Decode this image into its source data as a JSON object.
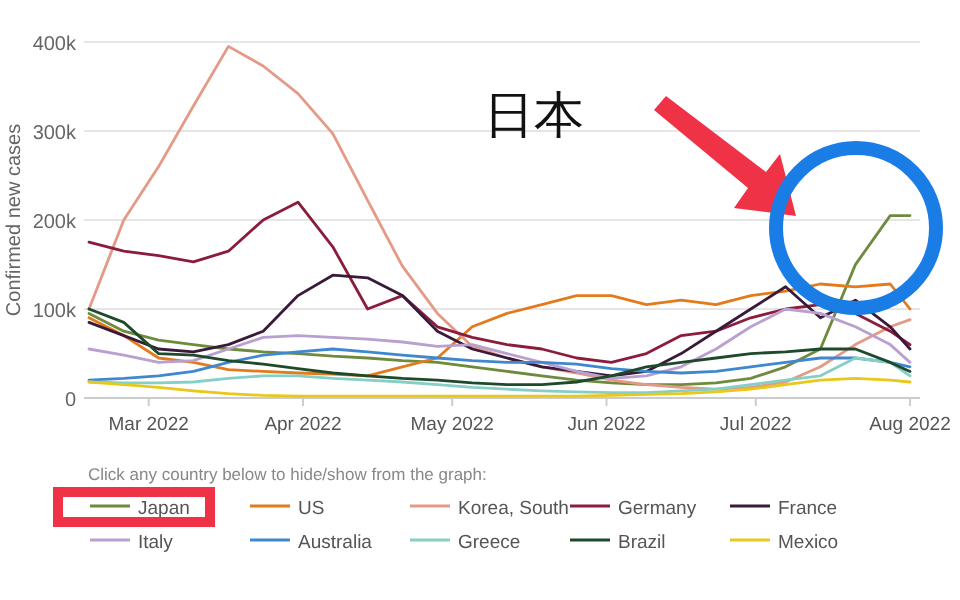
{
  "chart_data": {
    "type": "line",
    "ylabel": "Confirmed new cases",
    "x": [
      "2022-02-17",
      "2022-02-24",
      "2022-03-03",
      "2022-03-10",
      "2022-03-17",
      "2022-03-24",
      "2022-03-31",
      "2022-04-07",
      "2022-04-14",
      "2022-04-21",
      "2022-04-28",
      "2022-05-05",
      "2022-05-12",
      "2022-05-19",
      "2022-05-26",
      "2022-06-02",
      "2022-06-09",
      "2022-06-16",
      "2022-06-23",
      "2022-06-30",
      "2022-07-07",
      "2022-07-14",
      "2022-07-21",
      "2022-07-28",
      "2022-08-01"
    ],
    "xlim": [
      "2022-02-16",
      "2022-08-03"
    ],
    "xticks": [
      {
        "value": "2022-03-01",
        "label": "Mar 2022"
      },
      {
        "value": "2022-04-01",
        "label": "Apr 2022"
      },
      {
        "value": "2022-05-01",
        "label": "May 2022"
      },
      {
        "value": "2022-06-01",
        "label": "Jun 2022"
      },
      {
        "value": "2022-07-01",
        "label": "Jul 2022"
      },
      {
        "value": "2022-08-01",
        "label": "Aug 2022"
      }
    ],
    "ylim": [
      0,
      400000
    ],
    "yticks": [
      0,
      {
        "value": 100000,
        "label": "100k"
      },
      {
        "value": 200000,
        "label": "200k"
      },
      {
        "value": 300000,
        "label": "300k"
      },
      {
        "value": 400000,
        "label": "400k"
      }
    ],
    "grid": "y",
    "legend": "bottom",
    "series": [
      {
        "name": "Japan",
        "color": "#6e8b3d",
        "values": [
          95000,
          75000,
          65000,
          60000,
          55000,
          52000,
          50000,
          47000,
          45000,
          42000,
          40000,
          35000,
          30000,
          25000,
          20000,
          17000,
          15000,
          15000,
          17000,
          22000,
          35000,
          55000,
          150000,
          205000,
          205000
        ]
      },
      {
        "name": "US",
        "color": "#e37b1c",
        "values": [
          90000,
          70000,
          45000,
          40000,
          32000,
          30000,
          28000,
          27000,
          25000,
          35000,
          45000,
          80000,
          95000,
          105000,
          115000,
          115000,
          105000,
          110000,
          105000,
          115000,
          120000,
          128000,
          125000,
          128000,
          100000
        ]
      },
      {
        "name": "Korea, South",
        "color": "#e39a86",
        "values": [
          100000,
          200000,
          260000,
          328000,
          395000,
          373000,
          342000,
          297000,
          222000,
          148000,
          95000,
          58000,
          45000,
          35000,
          28000,
          20000,
          15000,
          12000,
          10000,
          12000,
          18000,
          35000,
          60000,
          80000,
          88000
        ]
      },
      {
        "name": "Germany",
        "color": "#8b1c3c",
        "values": [
          175000,
          165000,
          160000,
          153000,
          165000,
          200000,
          220000,
          170000,
          100000,
          115000,
          80000,
          68000,
          60000,
          55000,
          45000,
          40000,
          50000,
          70000,
          75000,
          90000,
          100000,
          105000,
          95000,
          75000,
          60000
        ]
      },
      {
        "name": "France",
        "color": "#3a1a3a",
        "values": [
          85000,
          70000,
          55000,
          52000,
          60000,
          75000,
          115000,
          138000,
          135000,
          115000,
          75000,
          55000,
          45000,
          35000,
          30000,
          25000,
          30000,
          50000,
          75000,
          100000,
          125000,
          90000,
          110000,
          80000,
          55000
        ]
      },
      {
        "name": "Italy",
        "color": "#b9a0d0",
        "values": [
          55000,
          48000,
          40000,
          42000,
          55000,
          68000,
          70000,
          68000,
          66000,
          63000,
          58000,
          60000,
          50000,
          40000,
          30000,
          22000,
          25000,
          35000,
          55000,
          80000,
          100000,
          95000,
          80000,
          60000,
          40000
        ]
      },
      {
        "name": "Australia",
        "color": "#3f88d0",
        "values": [
          20000,
          22000,
          25000,
          30000,
          40000,
          48000,
          52000,
          55000,
          52000,
          48000,
          45000,
          42000,
          40000,
          40000,
          38000,
          33000,
          30000,
          28000,
          30000,
          35000,
          40000,
          45000,
          45000,
          40000,
          35000
        ]
      },
      {
        "name": "Greece",
        "color": "#86cfc6",
        "values": [
          18000,
          17000,
          17000,
          18000,
          22000,
          25000,
          25000,
          22000,
          20000,
          18000,
          15000,
          12000,
          10000,
          8000,
          7000,
          6000,
          6000,
          8000,
          10000,
          15000,
          20000,
          25000,
          45000,
          40000,
          25000
        ]
      },
      {
        "name": "Brazil",
        "color": "#1d4a2a",
        "values": [
          100000,
          85000,
          50000,
          48000,
          42000,
          38000,
          33000,
          28000,
          25000,
          22000,
          20000,
          17000,
          15000,
          15000,
          18000,
          25000,
          35000,
          40000,
          45000,
          50000,
          52000,
          55000,
          55000,
          40000,
          30000
        ]
      },
      {
        "name": "Mexico",
        "color": "#e8c81a",
        "values": [
          18000,
          15000,
          12000,
          8000,
          5000,
          3000,
          2000,
          2000,
          2000,
          2000,
          2000,
          2000,
          2000,
          2000,
          2000,
          3000,
          4000,
          5000,
          7000,
          10000,
          15000,
          20000,
          22000,
          20000,
          18000
        ]
      }
    ],
    "annotations": [
      "日本",
      "Click any country below to hide/show from the graph:"
    ]
  }
}
